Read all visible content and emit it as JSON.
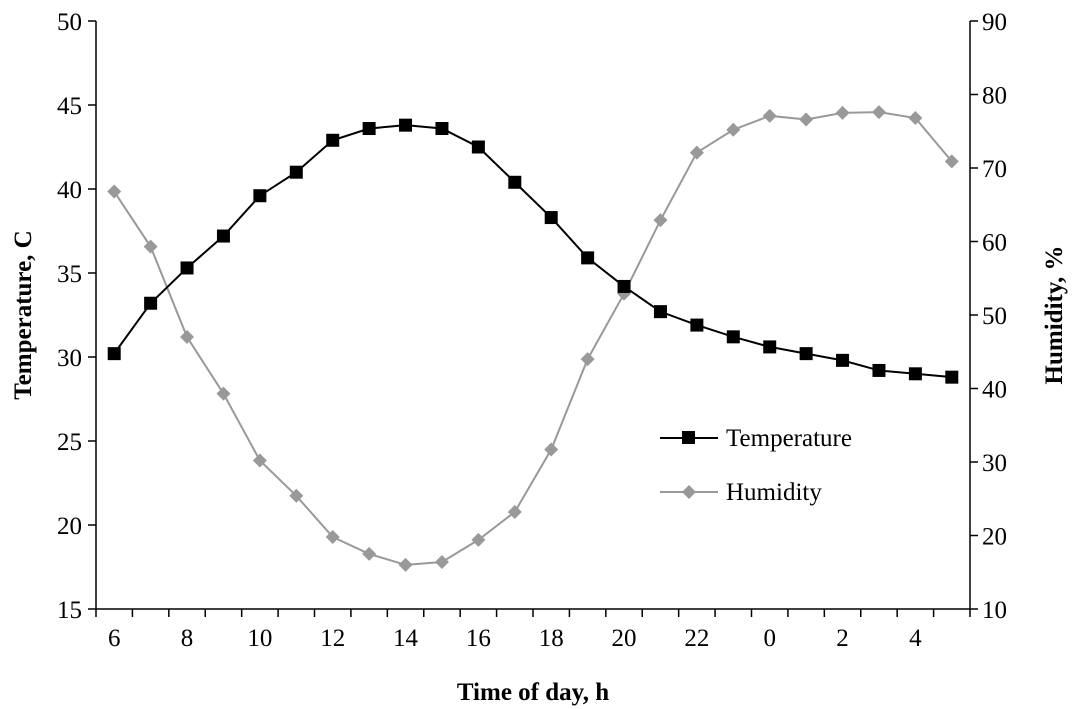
{
  "chart_data": {
    "type": "line",
    "xlabel": "Time of day, h",
    "ylabel_left": "Temperature, C",
    "ylabel_right": "Humidity, %",
    "x": [
      6,
      7,
      8,
      9,
      10,
      11,
      12,
      13,
      14,
      15,
      16,
      17,
      18,
      19,
      20,
      21,
      22,
      23,
      0,
      1,
      2,
      3,
      4,
      5
    ],
    "x_tick_labels": [
      "6",
      "8",
      "10",
      "12",
      "14",
      "16",
      "18",
      "20",
      "22",
      "0",
      "2",
      "4"
    ],
    "ylim_left": [
      15,
      50
    ],
    "y_ticks_left": [
      "15",
      "20",
      "25",
      "30",
      "35",
      "40",
      "45",
      "50"
    ],
    "ylim_right": [
      10,
      90
    ],
    "y_ticks_right": [
      "10",
      "20",
      "30",
      "40",
      "50",
      "60",
      "70",
      "80",
      "90"
    ],
    "grid": false,
    "legend_position": "middle-right",
    "series": [
      {
        "name": "Temperature",
        "axis": "left",
        "marker": "square",
        "color": "#000000",
        "values": [
          30.2,
          33.2,
          35.3,
          37.2,
          39.6,
          41.0,
          42.9,
          43.6,
          43.8,
          43.6,
          42.5,
          40.4,
          38.3,
          35.9,
          34.2,
          32.7,
          31.9,
          31.2,
          30.6,
          30.2,
          29.8,
          29.2,
          29.0,
          28.8
        ]
      },
      {
        "name": "Humidity",
        "axis": "right",
        "marker": "diamond",
        "color": "#999999",
        "values": [
          66.8,
          59.3,
          47.0,
          39.3,
          30.2,
          25.4,
          19.8,
          17.5,
          16.0,
          16.4,
          19.4,
          23.2,
          31.7,
          44.0,
          52.9,
          62.9,
          72.1,
          75.2,
          77.1,
          76.6,
          77.5,
          77.6,
          76.8,
          70.9
        ]
      }
    ]
  }
}
